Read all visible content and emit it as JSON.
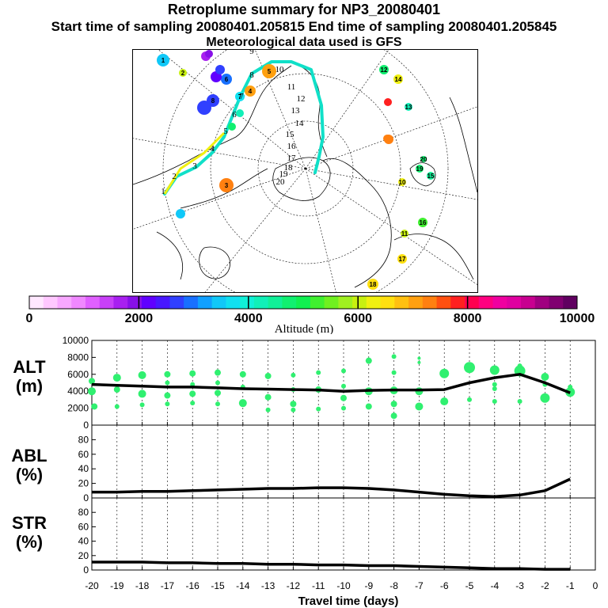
{
  "header": {
    "title": "Retroplume summary for NP3_20080401",
    "sampling": "Start time of sampling 20080401.205815     End time of sampling 20080401.205845",
    "met": "Meteorological data used is GFS"
  },
  "colorbar": {
    "colors": [
      "#ffe8ff",
      "#ffc8ff",
      "#f8a8ff",
      "#f088ff",
      "#e060ff",
      "#c840f8",
      "#a820f0",
      "#8810e8",
      "#6000ff",
      "#4818ff",
      "#3040ff",
      "#1870ff",
      "#10a0ff",
      "#10c8f8",
      "#10e0f0",
      "#10f0d8",
      "#10f0b8",
      "#10f098",
      "#10f070",
      "#10f050",
      "#40f030",
      "#70f020",
      "#a0f020",
      "#c8f010",
      "#f0f010",
      "#ffe010",
      "#ffc010",
      "#ffa010",
      "#ff8010",
      "#ff5010",
      "#ff2020",
      "#ff0050",
      "#ff0080",
      "#f000a0",
      "#e000a0",
      "#c80090",
      "#a00080",
      "#800070",
      "#600060"
    ],
    "tick_labels": [
      "0",
      "2000",
      "4000",
      "6000",
      "8000",
      "10000"
    ],
    "label": "Altitude (m)"
  },
  "map": {
    "track_labels": [
      "1",
      "2",
      "3",
      "4",
      "5",
      "6",
      "7",
      "8",
      "9",
      "10",
      "11",
      "12",
      "13",
      "14",
      "15",
      "16",
      "17",
      "18",
      "19",
      "20"
    ],
    "map_labels": [
      {
        "text": "1",
        "color": "#10c8f8",
        "r": 8
      },
      {
        "text": "2",
        "color": "#c8f010",
        "r": 5
      },
      {
        "text": "3",
        "color": "#ff8010",
        "r": 9
      },
      {
        "text": "4",
        "color": "#ffa010",
        "r": 7
      },
      {
        "text": "5",
        "color": "#ffa010",
        "r": 9
      },
      {
        "text": "6",
        "color": "#1870ff",
        "r": 7
      },
      {
        "text": "7",
        "color": "#10e0f0",
        "r": 6
      },
      {
        "text": "8",
        "color": "#3040ff",
        "r": 8
      },
      {
        "text": "9",
        "color": "#ff8010",
        "r": 6
      },
      {
        "text": "10",
        "color": "#f0f010",
        "r": 5
      },
      {
        "text": "11",
        "color": "#c8f010",
        "r": 5
      },
      {
        "text": "12",
        "color": "#10f070",
        "r": 6
      },
      {
        "text": "13",
        "color": "#10f0b8",
        "r": 5
      },
      {
        "text": "14",
        "color": "#f0f010",
        "r": 6
      },
      {
        "text": "15",
        "color": "#10f098",
        "r": 5
      },
      {
        "text": "16",
        "color": "#40f030",
        "r": 6
      },
      {
        "text": "17",
        "color": "#ffe010",
        "r": 6
      },
      {
        "text": "18",
        "color": "#ffe010",
        "r": 7
      },
      {
        "text": "19",
        "color": "#10f070",
        "r": 5
      },
      {
        "text": "20",
        "color": "#10f070",
        "r": 4
      }
    ]
  },
  "chart_data": [
    {
      "type": "line",
      "name": "ALT",
      "ylabel_line1": "ALT",
      "ylabel_line2": "(m)",
      "ylim": [
        0,
        10000
      ],
      "yticks": [
        0,
        2000,
        4000,
        6000,
        8000,
        10000
      ],
      "x": [
        -20,
        -19,
        -18,
        -17,
        -16,
        -15,
        -14,
        -13,
        -12,
        -11,
        -10,
        -9,
        -8,
        -7,
        -6,
        -5,
        -4,
        -3,
        -2,
        -1
      ],
      "values": [
        4800,
        4700,
        4600,
        4500,
        4500,
        4400,
        4300,
        4250,
        4200,
        4150,
        4000,
        4100,
        4150,
        4150,
        4200,
        5000,
        5600,
        6000,
        5000,
        3800
      ],
      "scatter": [
        {
          "x": -20,
          "y": 5200,
          "s": 4
        },
        {
          "x": -20,
          "y": 4000,
          "s": 5
        },
        {
          "x": -19.9,
          "y": 2200,
          "s": 4
        },
        {
          "x": -19,
          "y": 5600,
          "s": 5
        },
        {
          "x": -19,
          "y": 4200,
          "s": 4
        },
        {
          "x": -19,
          "y": 2200,
          "s": 3
        },
        {
          "x": -18,
          "y": 5900,
          "s": 5
        },
        {
          "x": -18,
          "y": 3700,
          "s": 5
        },
        {
          "x": -18,
          "y": 2400,
          "s": 3
        },
        {
          "x": -17,
          "y": 6000,
          "s": 4
        },
        {
          "x": -17,
          "y": 5000,
          "s": 3
        },
        {
          "x": -17,
          "y": 3500,
          "s": 4
        },
        {
          "x": -17,
          "y": 2500,
          "s": 3
        },
        {
          "x": -16,
          "y": 6100,
          "s": 4
        },
        {
          "x": -16,
          "y": 4800,
          "s": 3
        },
        {
          "x": -16,
          "y": 3700,
          "s": 4
        },
        {
          "x": -16,
          "y": 2600,
          "s": 3
        },
        {
          "x": -15,
          "y": 6200,
          "s": 4
        },
        {
          "x": -15,
          "y": 5000,
          "s": 3
        },
        {
          "x": -15,
          "y": 3800,
          "s": 4
        },
        {
          "x": -15,
          "y": 2500,
          "s": 3
        },
        {
          "x": -14,
          "y": 6000,
          "s": 4
        },
        {
          "x": -14,
          "y": 4500,
          "s": 3
        },
        {
          "x": -14,
          "y": 2600,
          "s": 5
        },
        {
          "x": -13,
          "y": 5800,
          "s": 4
        },
        {
          "x": -13,
          "y": 3300,
          "s": 4
        },
        {
          "x": -13,
          "y": 1800,
          "s": 3
        },
        {
          "x": -12,
          "y": 5900,
          "s": 3
        },
        {
          "x": -12,
          "y": 4200,
          "s": 3
        },
        {
          "x": -12,
          "y": 2500,
          "s": 4
        },
        {
          "x": -12,
          "y": 1800,
          "s": 3
        },
        {
          "x": -11,
          "y": 6200,
          "s": 3
        },
        {
          "x": -11,
          "y": 4200,
          "s": 4
        },
        {
          "x": -11,
          "y": 1900,
          "s": 3
        },
        {
          "x": -10,
          "y": 6400,
          "s": 3
        },
        {
          "x": -10,
          "y": 4600,
          "s": 3
        },
        {
          "x": -10,
          "y": 3200,
          "s": 4
        },
        {
          "x": -10,
          "y": 2000,
          "s": 3
        },
        {
          "x": -9,
          "y": 7600,
          "s": 4
        },
        {
          "x": -9,
          "y": 4000,
          "s": 5
        },
        {
          "x": -9,
          "y": 2200,
          "s": 4
        },
        {
          "x": -8,
          "y": 8100,
          "s": 3
        },
        {
          "x": -8,
          "y": 6200,
          "s": 3
        },
        {
          "x": -8,
          "y": 4100,
          "s": 5
        },
        {
          "x": -8,
          "y": 2500,
          "s": 4
        },
        {
          "x": -8,
          "y": 1100,
          "s": 4
        },
        {
          "x": -7,
          "y": 7900,
          "s": 2
        },
        {
          "x": -7,
          "y": 7400,
          "s": 2
        },
        {
          "x": -7,
          "y": 4000,
          "s": 5
        },
        {
          "x": -7,
          "y": 2200,
          "s": 5
        },
        {
          "x": -6,
          "y": 6100,
          "s": 6
        },
        {
          "x": -6,
          "y": 2800,
          "s": 5
        },
        {
          "x": -5,
          "y": 6800,
          "s": 7
        },
        {
          "x": -5,
          "y": 3000,
          "s": 3
        },
        {
          "x": -4,
          "y": 6500,
          "s": 6
        },
        {
          "x": -4,
          "y": 4800,
          "s": 3
        },
        {
          "x": -4,
          "y": 4300,
          "s": 3
        },
        {
          "x": -4,
          "y": 2800,
          "s": 3
        },
        {
          "x": -3,
          "y": 7000,
          "s": 3
        },
        {
          "x": -3,
          "y": 6400,
          "s": 7
        },
        {
          "x": -3,
          "y": 2800,
          "s": 3
        },
        {
          "x": -2,
          "y": 5700,
          "s": 5
        },
        {
          "x": -2,
          "y": 4800,
          "s": 3
        },
        {
          "x": -2,
          "y": 3200,
          "s": 6
        },
        {
          "x": -1,
          "y": 4500,
          "s": 3
        },
        {
          "x": -1,
          "y": 3900,
          "s": 6
        }
      ]
    },
    {
      "type": "line",
      "name": "ABL",
      "ylabel_line1": "ABL",
      "ylabel_line2": "(%)",
      "ylim": [
        0,
        100
      ],
      "yticks": [
        0,
        20,
        40,
        60,
        80
      ],
      "x": [
        -20,
        -19,
        -18,
        -17,
        -16,
        -15,
        -14,
        -13,
        -12,
        -11,
        -10,
        -9,
        -8,
        -7,
        -6,
        -5,
        -4,
        -3,
        -2,
        -1
      ],
      "values": [
        8,
        8,
        9,
        9,
        10,
        11,
        12,
        13,
        13,
        14,
        14,
        13,
        11,
        8,
        5,
        3,
        2,
        4,
        10,
        26
      ]
    },
    {
      "type": "line",
      "name": "STR",
      "ylabel_line1": "STR",
      "ylabel_line2": "(%)",
      "ylim": [
        0,
        100
      ],
      "yticks": [
        0,
        20,
        40,
        60,
        80
      ],
      "x": [
        -20,
        -19,
        -18,
        -17,
        -16,
        -15,
        -14,
        -13,
        -12,
        -11,
        -10,
        -9,
        -8,
        -7,
        -6,
        -5,
        -4,
        -3,
        -2,
        -1
      ],
      "values": [
        11,
        11,
        11,
        10,
        10,
        9,
        9,
        8,
        8,
        7,
        7,
        6,
        6,
        5,
        4,
        3,
        2,
        2,
        1,
        1
      ]
    }
  ],
  "x_axis": {
    "ticks": [
      "-20",
      "-19",
      "-18",
      "-17",
      "-16",
      "-15",
      "-14",
      "-13",
      "-12",
      "-11",
      "-10",
      "-9",
      "-8",
      "-7",
      "-6",
      "-5",
      "-4",
      "-3",
      "-2",
      "-1",
      "0"
    ],
    "label": "Travel time (days)"
  }
}
